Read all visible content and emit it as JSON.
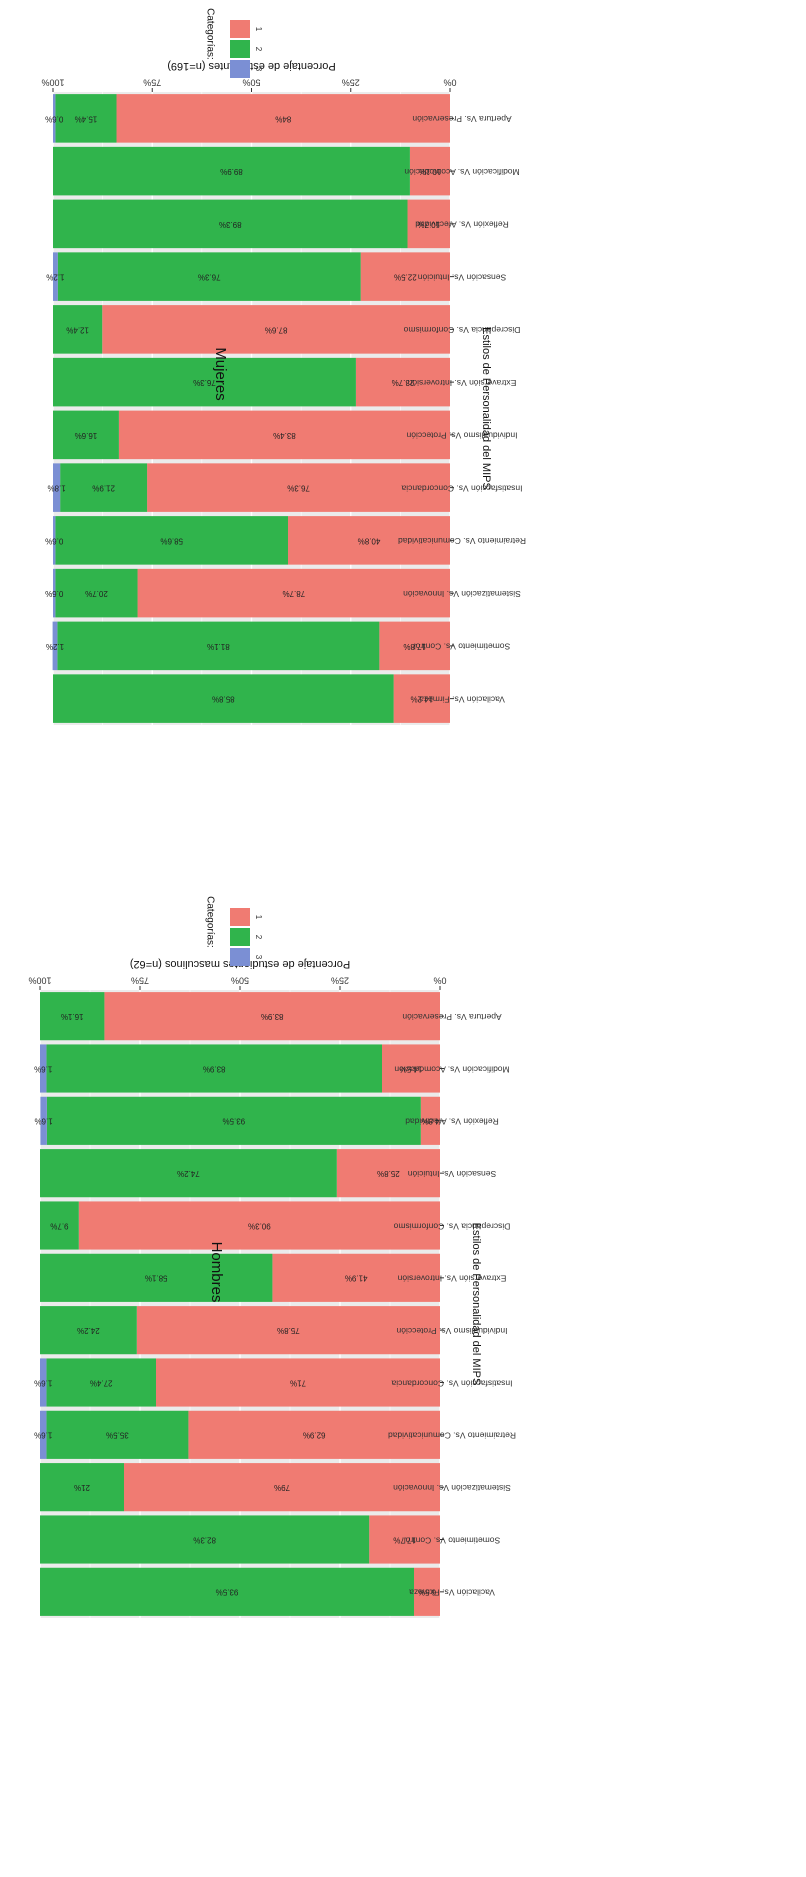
{
  "chart_data": [
    {
      "type": "bar",
      "stacked": true,
      "orientation": "horizontal",
      "title": "Mujeres",
      "xlabel": "Estilos de Personalidad del MIPS",
      "ylabel": "Porcentaje de estudiantes (n=169)",
      "ylim": [
        0,
        100
      ],
      "yticks": [
        "0%",
        "25%",
        "50%",
        "75%",
        "100%"
      ],
      "grid": true,
      "legend": {
        "title": "Categorías:",
        "position": "right",
        "labels": [
          "1",
          "2",
          "3"
        ]
      },
      "categories": [
        "Apertura Vs. Preservación",
        "Modificación Vs. Acomodación",
        "Reflexión Vs. Afectividad",
        "Sensación Vs. Intuición",
        "Discrepancia Vs. Conformismo",
        "Extraversión Vs. Introversión",
        "Individualismo Vs. Protección",
        "Insatisfacción Vs. Concordancia",
        "Retraimiento Vs. Comunicatividad",
        "Sistematización Vs. Innovación",
        "Sometimiento Vs. Control",
        "Vacilación Vs. Firmeza"
      ],
      "series": [
        {
          "name": "1",
          "color": "#f07b72",
          "values": [
            84,
            10.1,
            10.7,
            22.5,
            87.6,
            23.7,
            83.4,
            76.3,
            40.8,
            78.7,
            17.8,
            14.2
          ],
          "labels": [
            "84%",
            "10.1%",
            "10.7%",
            "22.5%",
            "87.6%",
            "23.7%",
            "83.4%",
            "76.3%",
            "40.8%",
            "78.7%",
            "17.8%",
            "14.2%"
          ]
        },
        {
          "name": "2",
          "color": "#30b44c",
          "values": [
            15.4,
            89.9,
            89.3,
            76.3,
            12.4,
            76.3,
            16.6,
            21.9,
            58.6,
            20.7,
            81.1,
            85.8
          ],
          "labels": [
            "15.4%",
            "89.9%",
            "89.3%",
            "76.3%",
            "12.4%",
            "76.3%",
            "16.6%",
            "21.9%",
            "58.6%",
            "20.7%",
            "81.1%",
            "85.8%"
          ]
        },
        {
          "name": "3",
          "color": "#7b8fd4",
          "values": [
            0.6,
            0,
            0,
            1.2,
            0,
            0,
            0,
            1.8,
            0.6,
            0.6,
            1.2,
            0
          ],
          "labels": [
            "0.6%",
            "",
            "",
            "1.2%",
            "",
            "",
            "",
            "1.8%",
            "0.6%",
            "0.6%",
            "1.2%",
            ""
          ]
        }
      ]
    },
    {
      "type": "bar",
      "stacked": true,
      "orientation": "horizontal",
      "title": "Hombres",
      "xlabel": "Estilos de Personalidad del MIPS",
      "ylabel": "Porcentaje de estudiantes masculinos (n=62)",
      "ylim": [
        0,
        100
      ],
      "yticks": [
        "0%",
        "25%",
        "50%",
        "75%",
        "100%"
      ],
      "grid": true,
      "legend": {
        "title": "Categorías:",
        "position": "right",
        "labels": [
          "1",
          "2",
          "3"
        ]
      },
      "categories": [
        "Apertura Vs. Preservación",
        "Modificación Vs. Acomodación",
        "Reflexión Vs. Afectividad",
        "Sensación Vs. Intuición",
        "Discrepancia Vs. Conformismo",
        "Extraversión Vs. Introversión",
        "Individualismo Vs. Protección",
        "Insatisfacción Vs. Concordancia",
        "Retraimiento Vs. Comunicatividad",
        "Sistematización Vs. Innovación",
        "Sometimiento Vs. Control",
        "Vacilación Vs. Firmeza"
      ],
      "series": [
        {
          "name": "1",
          "color": "#f07b72",
          "values": [
            83.9,
            14.5,
            4.8,
            25.8,
            90.3,
            41.9,
            75.8,
            71,
            62.9,
            79,
            17.7,
            6.5
          ],
          "labels": [
            "83.9%",
            "14.5%",
            "4.8%",
            "25.8%",
            "90.3%",
            "41.9%",
            "75.8%",
            "71%",
            "62.9%",
            "79%",
            "17.7%",
            "6.5%"
          ]
        },
        {
          "name": "2",
          "color": "#30b44c",
          "values": [
            16.1,
            83.9,
            93.5,
            74.2,
            9.7,
            58.1,
            24.2,
            27.4,
            35.5,
            21,
            82.3,
            93.5
          ],
          "labels": [
            "16.1%",
            "83.9%",
            "93.5%",
            "74.2%",
            "9.7%",
            "58.1%",
            "24.2%",
            "27.4%",
            "35.5%",
            "21%",
            "82.3%",
            "93.5%"
          ]
        },
        {
          "name": "3",
          "color": "#7b8fd4",
          "values": [
            0,
            1.6,
            1.6,
            0,
            0,
            0,
            0,
            1.6,
            1.6,
            0,
            0,
            0
          ],
          "labels": [
            "",
            "1.6%",
            "1.6%",
            "",
            "",
            "",
            "",
            "1.6%",
            "1.6%",
            "",
            "",
            ""
          ]
        }
      ]
    }
  ]
}
